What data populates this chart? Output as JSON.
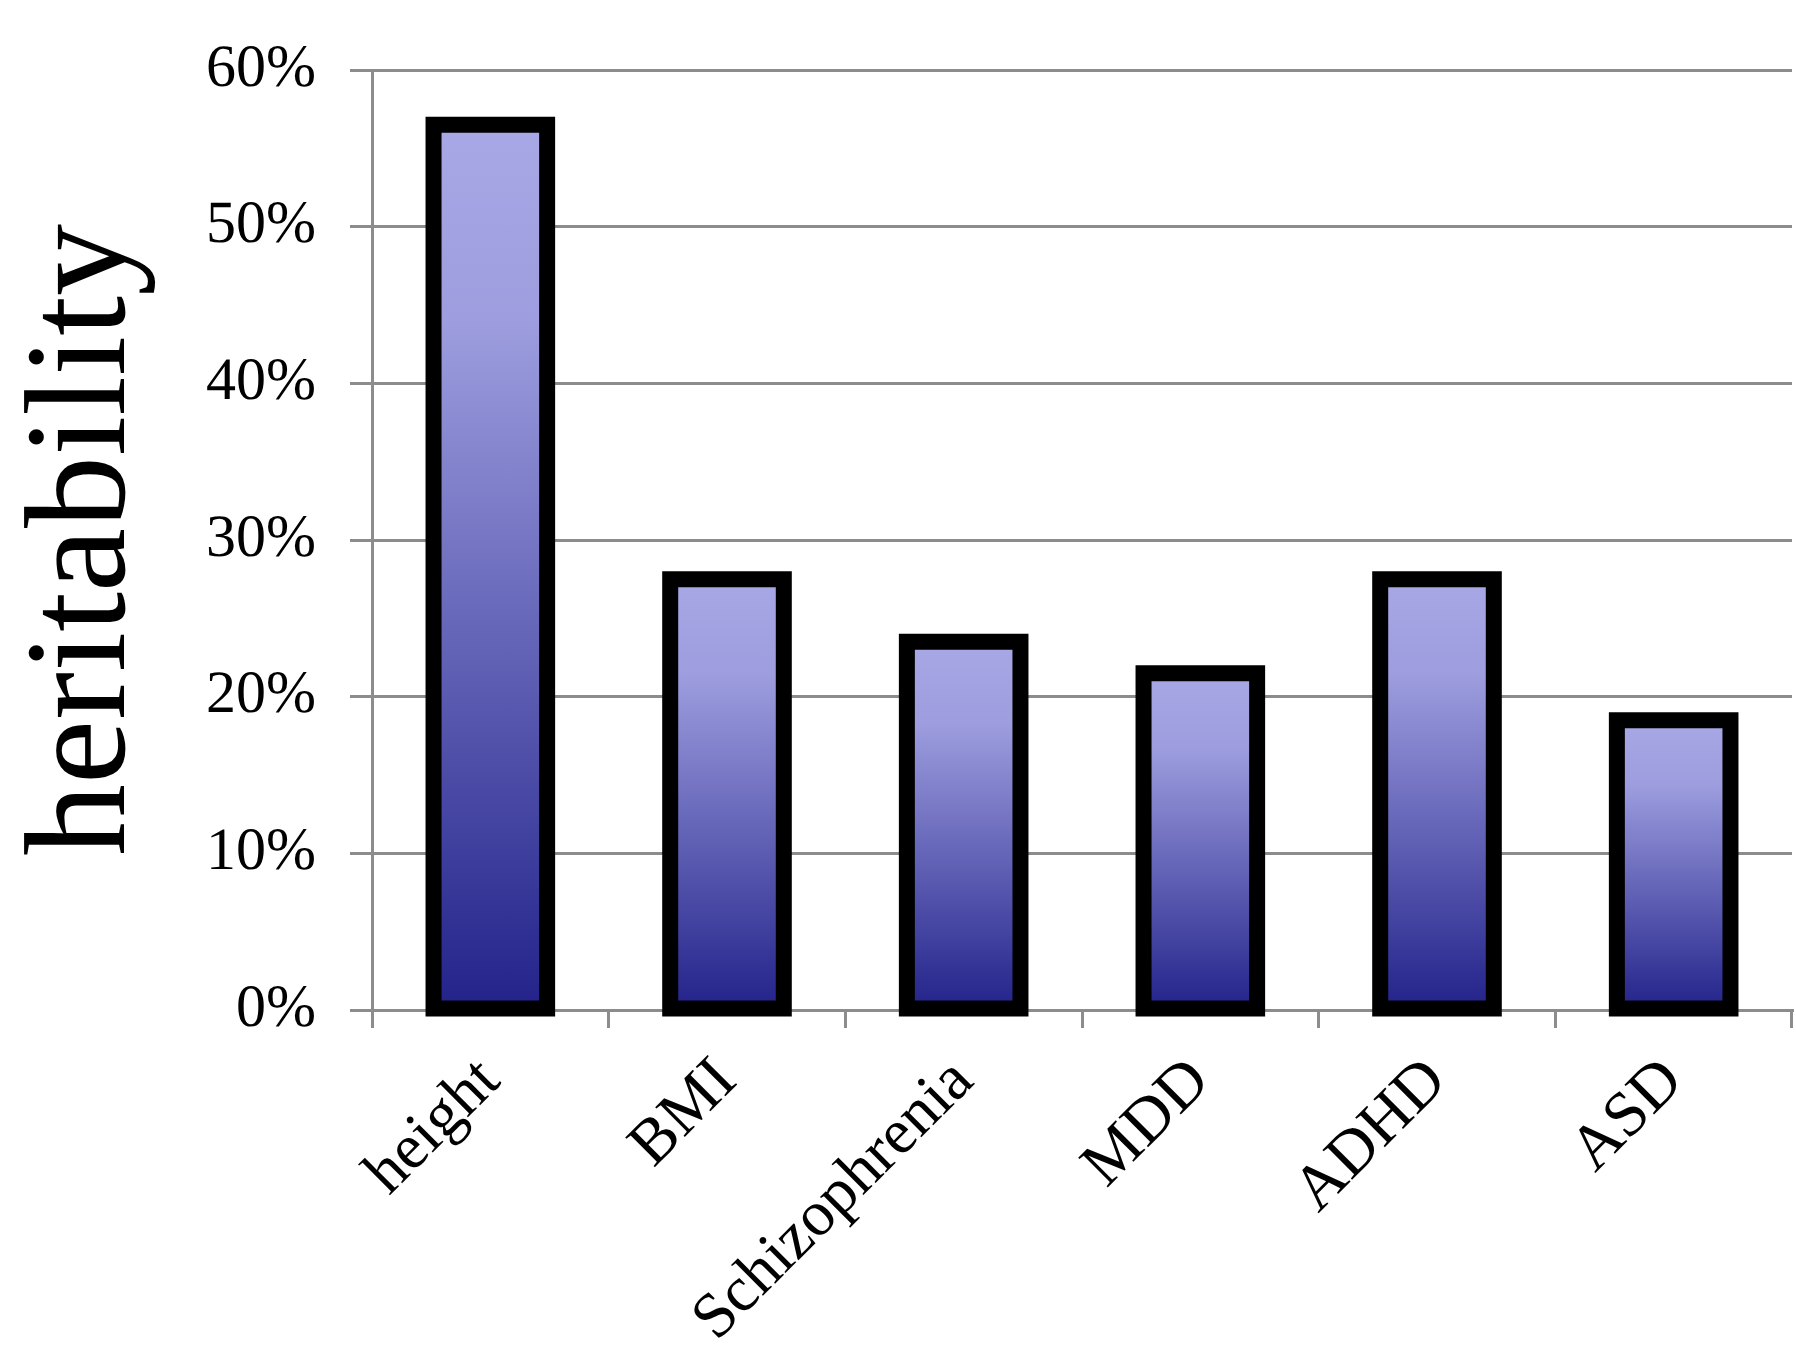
{
  "chart_data": {
    "type": "bar",
    "ylabel": "heritability",
    "categories": [
      "height",
      "BMI",
      "Schizophrenia",
      "MDD",
      "ADHD",
      "ASD"
    ],
    "values": [
      56.5,
      27.5,
      23.5,
      21.5,
      27.5,
      18.5
    ],
    "color": "#a8a8e6",
    "ylim": [
      0,
      60
    ],
    "yticks": [
      {
        "value": 0,
        "label": "0%"
      },
      {
        "value": 10,
        "label": "10%"
      },
      {
        "value": 20,
        "label": "20%"
      },
      {
        "value": 30,
        "label": "30%"
      },
      {
        "value": 40,
        "label": "40%"
      },
      {
        "value": 50,
        "label": "50%"
      },
      {
        "value": 60,
        "label": "60%"
      }
    ],
    "grid": "y"
  }
}
